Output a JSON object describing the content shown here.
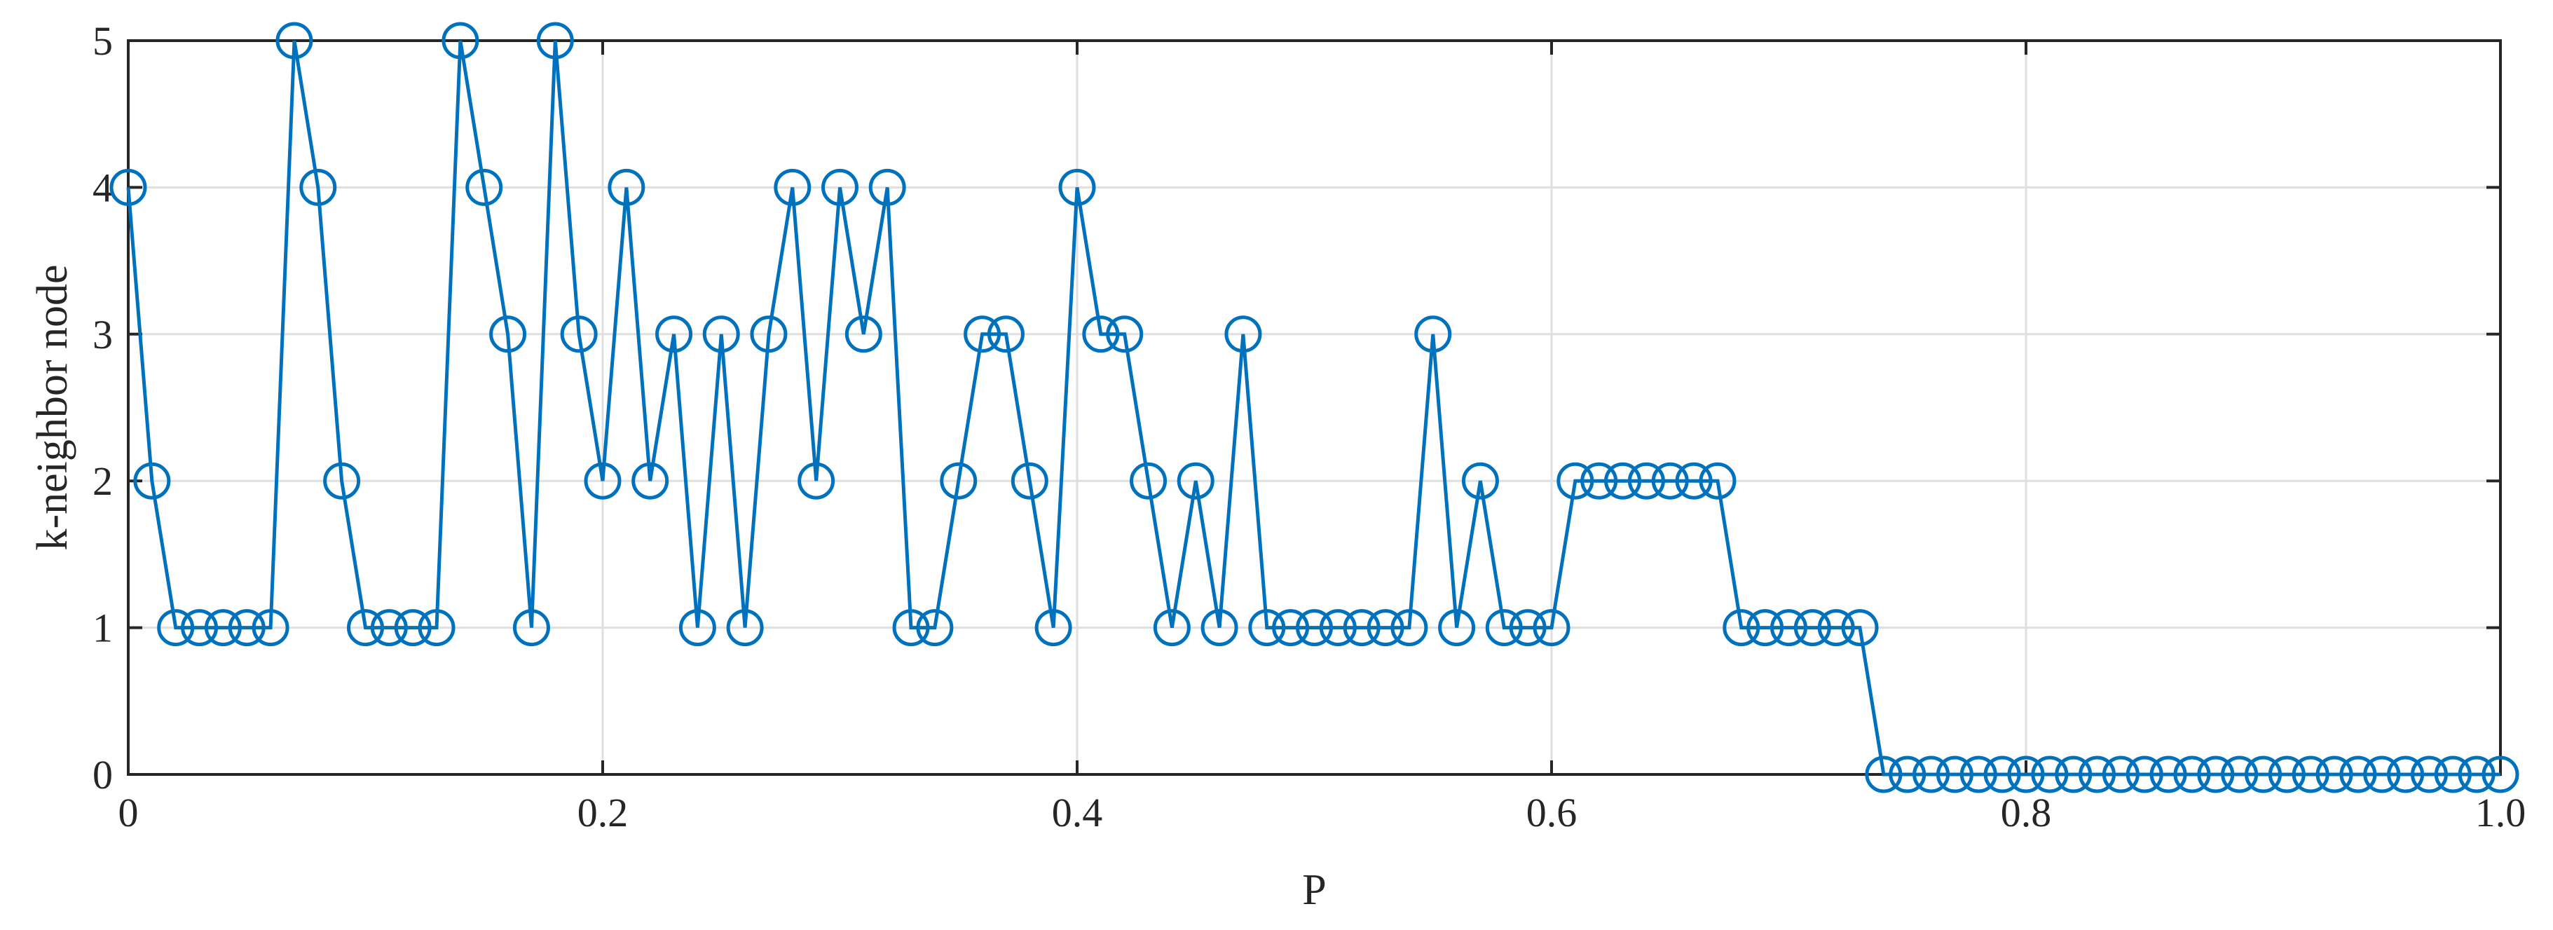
{
  "chart_data": {
    "type": "line",
    "title": "",
    "xlabel": "P",
    "ylabel": "k-neighbor node",
    "xlim": [
      0,
      1
    ],
    "ylim": [
      0,
      5
    ],
    "x_ticks": [
      0,
      0.2,
      0.4,
      0.6,
      0.8,
      1
    ],
    "x_tick_labels": [
      "0",
      "0.2",
      "0.4",
      "0.6",
      "0.8",
      "1.0"
    ],
    "y_ticks": [
      0,
      1,
      2,
      3,
      4,
      5
    ],
    "y_tick_labels": [
      "0",
      "1",
      "2",
      "3",
      "4",
      "5"
    ],
    "grid": true,
    "marker": "circle",
    "color": "#0072BD",
    "series": [
      {
        "x": [
          0,
          0.01,
          0.02,
          0.03,
          0.04,
          0.05,
          0.06,
          0.07,
          0.08,
          0.09,
          0.1,
          0.11,
          0.12,
          0.13,
          0.14,
          0.15,
          0.16,
          0.17,
          0.18,
          0.19,
          0.2,
          0.21,
          0.22,
          0.23,
          0.24,
          0.25,
          0.26,
          0.27,
          0.28,
          0.29,
          0.3,
          0.31,
          0.32,
          0.33,
          0.34,
          0.35,
          0.36,
          0.37,
          0.38,
          0.39,
          0.4,
          0.41,
          0.42,
          0.43,
          0.44,
          0.45,
          0.46,
          0.47,
          0.48,
          0.49,
          0.5,
          0.51,
          0.52,
          0.53,
          0.54,
          0.55,
          0.56,
          0.57,
          0.58,
          0.59,
          0.6,
          0.61,
          0.62,
          0.63,
          0.64,
          0.65,
          0.66,
          0.67,
          0.68,
          0.69,
          0.7,
          0.71,
          0.72,
          0.73,
          0.74,
          0.75,
          0.76,
          0.77,
          0.78,
          0.79,
          0.8,
          0.81,
          0.82,
          0.83,
          0.84,
          0.85,
          0.86,
          0.87,
          0.88,
          0.89,
          0.9,
          0.91,
          0.92,
          0.93,
          0.94,
          0.95,
          0.96,
          0.97,
          0.98,
          0.99,
          1.0
        ],
        "y": [
          4,
          2,
          1,
          1,
          1,
          1,
          1,
          5,
          4,
          2,
          1,
          1,
          1,
          1,
          5,
          4,
          3,
          1,
          5,
          3,
          2,
          4,
          2,
          3,
          1,
          3,
          1,
          3,
          4,
          2,
          4,
          3,
          4,
          1,
          1,
          2,
          3,
          3,
          2,
          1,
          4,
          3,
          3,
          2,
          1,
          2,
          1,
          3,
          1,
          1,
          1,
          1,
          1,
          1,
          1,
          3,
          1,
          2,
          1,
          1,
          1,
          2,
          2,
          2,
          2,
          2,
          2,
          2,
          1,
          1,
          1,
          1,
          1,
          1,
          0,
          0,
          0,
          0,
          0,
          0,
          0,
          0,
          0,
          0,
          0,
          0,
          0,
          0,
          0,
          0,
          0,
          0,
          0,
          0,
          0,
          0,
          0,
          0,
          0,
          0,
          0
        ]
      }
    ]
  }
}
